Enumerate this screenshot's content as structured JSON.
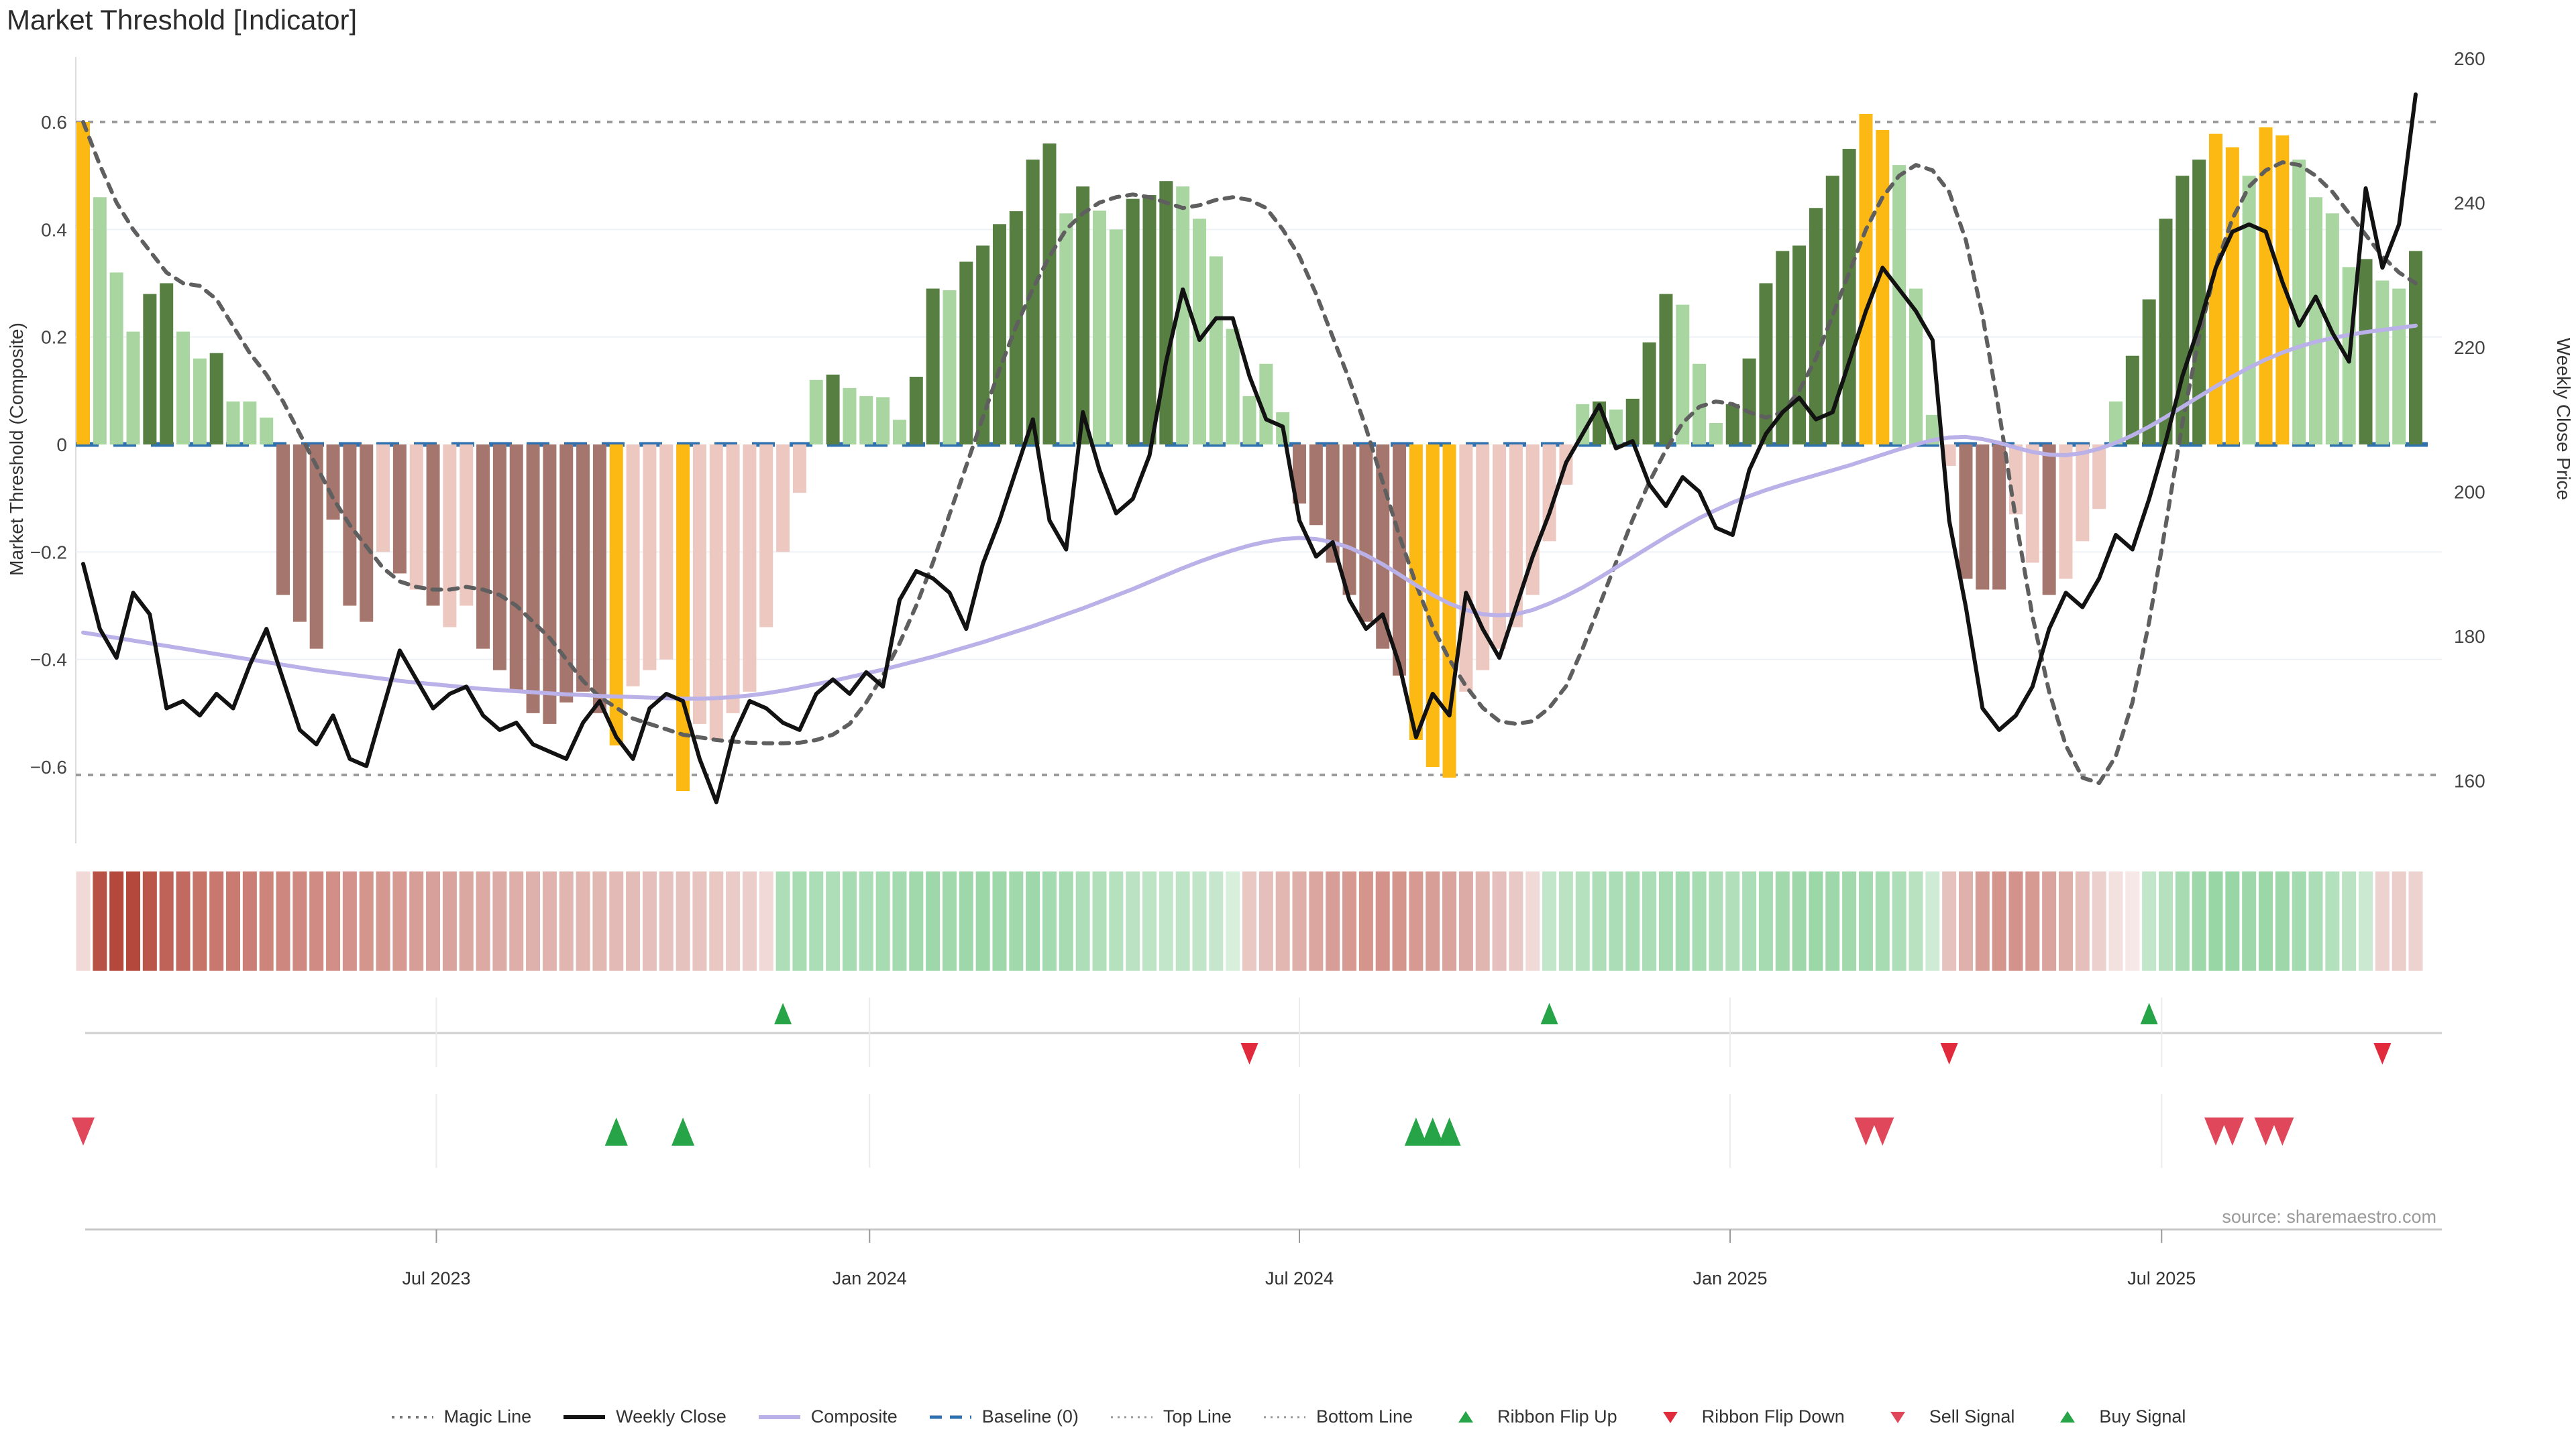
{
  "title": "Market Threshold [Indicator]",
  "source_note": "source: sharemaestro.com",
  "axes": {
    "left_label": "Market Threshold (Composite)",
    "right_label": "Weekly Close Price",
    "left_tick_labels": [
      "0.6",
      "0.4",
      "0.2",
      "0",
      "−0.2",
      "−0.4",
      "−0.6"
    ],
    "left_tick_values": [
      0.6,
      0.4,
      0.2,
      0,
      -0.2,
      -0.4,
      -0.6
    ],
    "right_tick_labels": [
      "260",
      "240",
      "220",
      "200",
      "180",
      "160"
    ],
    "right_tick_values": [
      260,
      240,
      220,
      200,
      180,
      160
    ],
    "x_tick_labels": [
      "Jul 2023",
      "Jan 2024",
      "Jul 2024",
      "Jan 2025",
      "Jul 2025"
    ]
  },
  "legend": [
    {
      "label": "Magic Line",
      "swatch": "magic"
    },
    {
      "label": "Weekly Close",
      "swatch": "weekly"
    },
    {
      "label": "Composite",
      "swatch": "composite"
    },
    {
      "label": "Baseline (0)",
      "swatch": "baseline"
    },
    {
      "label": "Top Line",
      "swatch": "topline"
    },
    {
      "label": "Bottom Line",
      "swatch": "bottomline"
    },
    {
      "label": "Ribbon Flip Up",
      "swatch": "flip_up"
    },
    {
      "label": "Ribbon Flip Down",
      "swatch": "flip_down"
    },
    {
      "label": "Sell Signal",
      "swatch": "sell"
    },
    {
      "label": "Buy Signal",
      "swatch": "buy"
    }
  ],
  "colors": {
    "gold": "#fcb813",
    "dark_green": "#567f41",
    "light_green": "#a9d5a1",
    "dark_red": "#a5766d",
    "light_pink": "#ecc8c1",
    "baseline": "#2e71ae",
    "composite": "#b9b1e8",
    "weekly_close": "#121212",
    "magic": "#5f5f5f",
    "top_bottom_line": "#9b9b9b",
    "grid": "#edf0f5",
    "flip_up": "#27a348",
    "flip_down": "#e12b3c",
    "sell": "#e0475a",
    "buy": "#27a348",
    "ribbon_neg_full": "#b4483c",
    "ribbon_neg_base": "#faf2f1",
    "ribbon_pos_full": "#6cc47f",
    "ribbon_pos_base": "#f0f8f1",
    "axis_text": "#444444",
    "row_line": "#cfcfcf",
    "source_text": "#9a9a9a"
  },
  "chart_data": {
    "type": "bar",
    "subtype": "weekly combo: threshold bars + price line + composite + magic line + ribbon + signals",
    "weeks": 141,
    "left_ylim": [
      -0.72,
      0.72
    ],
    "right_ylim": [
      160,
      260
    ],
    "top_line": 0.6,
    "bottom_line": -0.615,
    "baseline": 0,
    "x_tick_weeks": [
      21.2,
      47.2,
      73.0,
      98.85,
      124.75
    ],
    "bar_values": [
      0.6,
      0.46,
      0.32,
      0.21,
      0.28,
      0.3,
      0.21,
      0.16,
      0.17,
      0.08,
      0.08,
      0.05,
      -0.28,
      -0.33,
      -0.38,
      -0.14,
      -0.3,
      -0.33,
      -0.2,
      -0.24,
      -0.27,
      -0.3,
      -0.34,
      -0.3,
      -0.38,
      -0.42,
      -0.46,
      -0.5,
      -0.52,
      -0.48,
      -0.46,
      -0.5,
      -0.56,
      -0.45,
      -0.42,
      -0.4,
      -0.645,
      -0.52,
      -0.55,
      -0.5,
      -0.46,
      -0.34,
      -0.2,
      -0.09,
      0.12,
      0.13,
      0.105,
      0.09,
      0.088,
      0.046,
      0.126,
      0.29,
      0.287,
      0.34,
      0.37,
      0.41,
      0.434,
      0.53,
      0.56,
      0.43,
      0.48,
      0.435,
      0.4,
      0.457,
      0.464,
      0.49,
      0.48,
      0.42,
      0.35,
      0.215,
      0.09,
      0.15,
      0.06,
      -0.11,
      -0.15,
      -0.22,
      -0.28,
      -0.33,
      -0.38,
      -0.43,
      -0.55,
      -0.6,
      -0.62,
      -0.46,
      -0.42,
      -0.38,
      -0.34,
      -0.28,
      -0.18,
      -0.075,
      0.075,
      0.08,
      0.065,
      0.085,
      0.19,
      0.28,
      0.26,
      0.15,
      0.04,
      0.075,
      0.16,
      0.3,
      0.36,
      0.37,
      0.44,
      0.5,
      0.55,
      0.615,
      0.585,
      0.52,
      0.29,
      0.055,
      -0.04,
      -0.25,
      -0.27,
      -0.27,
      -0.13,
      -0.22,
      -0.28,
      -0.25,
      -0.18,
      -0.12,
      0.08,
      0.165,
      0.27,
      0.42,
      0.5,
      0.53,
      0.578,
      0.553,
      0.5,
      0.59,
      0.575,
      0.53,
      0.46,
      0.43,
      0.33,
      0.345,
      0.305,
      0.29,
      0.36
    ],
    "bar_colors": [
      "g",
      "lg",
      "lg",
      "lg",
      "dg",
      "dg",
      "lg",
      "lg",
      "dg",
      "lg",
      "lg",
      "lg",
      "dr",
      "dr",
      "dr",
      "dr",
      "dr",
      "dr",
      "lp",
      "dr",
      "lp",
      "dr",
      "lp",
      "lp",
      "dr",
      "dr",
      "dr",
      "dr",
      "dr",
      "dr",
      "dr",
      "dr",
      "g",
      "lp",
      "lp",
      "lp",
      "g",
      "lp",
      "lp",
      "lp",
      "lp",
      "lp",
      "lp",
      "lp",
      "lg",
      "dg",
      "lg",
      "lg",
      "lg",
      "lg",
      "dg",
      "dg",
      "lg",
      "dg",
      "dg",
      "dg",
      "dg",
      "dg",
      "dg",
      "lg",
      "dg",
      "lg",
      "lg",
      "dg",
      "dg",
      "dg",
      "lg",
      "lg",
      "lg",
      "lg",
      "lg",
      "lg",
      "lg",
      "dr",
      "dr",
      "dr",
      "dr",
      "dr",
      "dr",
      "dr",
      "g",
      "g",
      "g",
      "lp",
      "lp",
      "lp",
      "lp",
      "lp",
      "lp",
      "lp",
      "lg",
      "dg",
      "lg",
      "dg",
      "dg",
      "dg",
      "lg",
      "lg",
      "lg",
      "dg",
      "dg",
      "dg",
      "dg",
      "dg",
      "dg",
      "dg",
      "dg",
      "g",
      "g",
      "lg",
      "lg",
      "lg",
      "lp",
      "dr",
      "dr",
      "dr",
      "lp",
      "lp",
      "dr",
      "lp",
      "lp",
      "lp",
      "lg",
      "dg",
      "dg",
      "dg",
      "dg",
      "dg",
      "g",
      "g",
      "lg",
      "g",
      "g",
      "lg",
      "lg",
      "lg",
      "lg",
      "dg",
      "lg",
      "lg",
      "dg"
    ],
    "weekly_close": [
      190,
      181,
      177,
      186,
      183,
      170,
      171,
      169,
      172,
      170,
      176,
      181,
      174,
      167,
      165,
      169,
      163,
      162,
      170,
      178,
      174,
      170,
      172,
      173,
      169,
      167,
      168,
      165,
      164,
      163,
      168,
      171,
      166,
      163,
      170,
      172,
      171,
      163,
      157,
      166,
      171,
      170,
      168,
      167,
      172,
      174,
      172,
      175,
      173,
      185,
      189,
      188,
      186,
      181,
      190,
      196,
      203,
      210,
      196,
      192,
      211,
      203,
      197,
      199,
      205,
      218,
      228,
      221,
      224,
      224,
      216,
      210,
      209,
      196,
      191,
      193,
      185,
      181,
      183,
      176,
      166,
      172,
      169,
      186,
      181,
      177,
      184,
      191,
      197,
      204,
      208,
      212,
      206,
      207,
      201,
      198,
      202,
      200,
      195,
      194,
      203,
      208,
      211,
      213,
      210,
      211,
      218,
      225,
      231,
      228,
      225,
      221,
      196,
      184,
      170,
      167,
      169,
      173,
      181,
      186,
      184,
      188,
      194,
      192,
      199,
      207,
      216,
      223,
      231,
      236,
      237,
      236,
      229,
      223,
      227,
      222,
      218,
      242,
      231,
      237,
      255
    ],
    "composite": [
      -0.35,
      -0.355,
      -0.36,
      -0.365,
      -0.37,
      -0.375,
      -0.38,
      -0.385,
      -0.39,
      -0.395,
      -0.4,
      -0.405,
      -0.41,
      -0.415,
      -0.42,
      -0.424,
      -0.428,
      -0.432,
      -0.436,
      -0.44,
      -0.443,
      -0.446,
      -0.449,
      -0.452,
      -0.455,
      -0.457,
      -0.459,
      -0.461,
      -0.463,
      -0.465,
      -0.466,
      -0.468,
      -0.469,
      -0.47,
      -0.471,
      -0.472,
      -0.473,
      -0.473,
      -0.472,
      -0.47,
      -0.467,
      -0.463,
      -0.458,
      -0.452,
      -0.446,
      -0.44,
      -0.433,
      -0.426,
      -0.419,
      -0.411,
      -0.403,
      -0.395,
      -0.386,
      -0.377,
      -0.368,
      -0.358,
      -0.348,
      -0.338,
      -0.327,
      -0.316,
      -0.305,
      -0.293,
      -0.281,
      -0.269,
      -0.256,
      -0.243,
      -0.23,
      -0.218,
      -0.207,
      -0.197,
      -0.188,
      -0.181,
      -0.176,
      -0.174,
      -0.176,
      -0.182,
      -0.192,
      -0.206,
      -0.223,
      -0.242,
      -0.262,
      -0.28,
      -0.296,
      -0.308,
      -0.316,
      -0.318,
      -0.316,
      -0.308,
      -0.296,
      -0.282,
      -0.266,
      -0.248,
      -0.229,
      -0.21,
      -0.191,
      -0.172,
      -0.154,
      -0.137,
      -0.122,
      -0.108,
      -0.096,
      -0.085,
      -0.075,
      -0.066,
      -0.057,
      -0.048,
      -0.039,
      -0.029,
      -0.019,
      -0.009,
      0.0,
      0.008,
      0.013,
      0.014,
      0.01,
      0.003,
      -0.006,
      -0.014,
      -0.019,
      -0.02,
      -0.016,
      -0.008,
      0.003,
      0.017,
      0.033,
      0.051,
      0.07,
      0.089,
      0.108,
      0.126,
      0.143,
      0.158,
      0.171,
      0.182,
      0.191,
      0.198,
      0.204,
      0.209,
      0.213,
      0.217,
      0.221
    ],
    "magic_line": [
      0.6,
      0.52,
      0.45,
      0.4,
      0.36,
      0.32,
      0.3,
      0.295,
      0.27,
      0.22,
      0.17,
      0.13,
      0.08,
      0.02,
      -0.04,
      -0.1,
      -0.15,
      -0.19,
      -0.23,
      -0.255,
      -0.265,
      -0.27,
      -0.27,
      -0.265,
      -0.27,
      -0.28,
      -0.3,
      -0.33,
      -0.36,
      -0.4,
      -0.44,
      -0.47,
      -0.49,
      -0.51,
      -0.52,
      -0.53,
      -0.54,
      -0.545,
      -0.55,
      -0.553,
      -0.555,
      -0.556,
      -0.556,
      -0.555,
      -0.55,
      -0.54,
      -0.52,
      -0.48,
      -0.43,
      -0.37,
      -0.3,
      -0.22,
      -0.13,
      -0.04,
      0.05,
      0.14,
      0.22,
      0.29,
      0.35,
      0.4,
      0.43,
      0.45,
      0.46,
      0.465,
      0.46,
      0.45,
      0.44,
      0.445,
      0.455,
      0.46,
      0.455,
      0.44,
      0.4,
      0.35,
      0.28,
      0.2,
      0.12,
      0.03,
      -0.07,
      -0.17,
      -0.26,
      -0.34,
      -0.4,
      -0.45,
      -0.49,
      -0.515,
      -0.52,
      -0.515,
      -0.49,
      -0.45,
      -0.38,
      -0.3,
      -0.22,
      -0.14,
      -0.07,
      -0.01,
      0.04,
      0.07,
      0.08,
      0.075,
      0.06,
      0.05,
      0.06,
      0.1,
      0.16,
      0.24,
      0.32,
      0.4,
      0.46,
      0.5,
      0.52,
      0.51,
      0.47,
      0.38,
      0.24,
      0.06,
      -0.14,
      -0.32,
      -0.46,
      -0.56,
      -0.62,
      -0.63,
      -0.58,
      -0.48,
      -0.33,
      -0.15,
      0.04,
      0.2,
      0.33,
      0.42,
      0.48,
      0.51,
      0.525,
      0.52,
      0.5,
      0.47,
      0.43,
      0.39,
      0.35,
      0.32,
      0.3
    ],
    "ribbon": [
      -0.15,
      -0.95,
      -1.0,
      -1.0,
      -0.92,
      -0.85,
      -0.8,
      -0.75,
      -0.72,
      -0.7,
      -0.68,
      -0.65,
      -0.63,
      -0.62,
      -0.6,
      -0.58,
      -0.56,
      -0.55,
      -0.53,
      -0.52,
      -0.5,
      -0.48,
      -0.46,
      -0.44,
      -0.43,
      -0.42,
      -0.4,
      -0.38,
      -0.37,
      -0.36,
      -0.35,
      -0.34,
      -0.33,
      -0.32,
      -0.3,
      -0.29,
      -0.28,
      -0.27,
      -0.25,
      -0.23,
      -0.21,
      -0.15,
      0.5,
      0.55,
      0.52,
      0.5,
      0.55,
      0.52,
      0.55,
      0.58,
      0.6,
      0.62,
      0.6,
      0.62,
      0.64,
      0.62,
      0.6,
      0.62,
      0.58,
      0.55,
      0.5,
      0.48,
      0.45,
      0.4,
      0.38,
      0.35,
      0.38,
      0.36,
      0.32,
      0.18,
      -0.25,
      -0.3,
      -0.35,
      -0.4,
      -0.45,
      -0.5,
      -0.52,
      -0.55,
      -0.56,
      -0.55,
      -0.52,
      -0.5,
      -0.46,
      -0.42,
      -0.36,
      -0.3,
      -0.24,
      -0.14,
      0.35,
      0.4,
      0.45,
      0.5,
      0.52,
      0.55,
      0.52,
      0.55,
      0.58,
      0.55,
      0.5,
      0.48,
      0.52,
      0.56,
      0.6,
      0.62,
      0.64,
      0.62,
      0.6,
      0.58,
      0.55,
      0.5,
      0.42,
      0.25,
      -0.28,
      -0.38,
      -0.5,
      -0.55,
      -0.56,
      -0.52,
      -0.46,
      -0.4,
      -0.3,
      -0.2,
      -0.1,
      -0.06,
      0.35,
      0.45,
      0.55,
      0.62,
      0.66,
      0.66,
      0.62,
      0.64,
      0.62,
      0.58,
      0.52,
      0.46,
      0.4,
      0.28,
      -0.18,
      -0.22,
      -0.18
    ],
    "flips": [
      {
        "week": 42,
        "dir": "up"
      },
      {
        "week": 70,
        "dir": "down"
      },
      {
        "week": 88,
        "dir": "up"
      },
      {
        "week": 112,
        "dir": "down"
      },
      {
        "week": 124,
        "dir": "up"
      },
      {
        "week": 138,
        "dir": "down"
      }
    ],
    "signals": [
      {
        "week": 0,
        "type": "sell"
      },
      {
        "week": 32,
        "type": "buy"
      },
      {
        "week": 36,
        "type": "buy"
      },
      {
        "week": 80,
        "type": "buy"
      },
      {
        "week": 81,
        "type": "buy"
      },
      {
        "week": 82,
        "type": "buy"
      },
      {
        "week": 107,
        "type": "sell"
      },
      {
        "week": 108,
        "type": "sell"
      },
      {
        "week": 128,
        "type": "sell"
      },
      {
        "week": 129,
        "type": "sell"
      },
      {
        "week": 131,
        "type": "sell"
      },
      {
        "week": 132,
        "type": "sell"
      }
    ]
  }
}
